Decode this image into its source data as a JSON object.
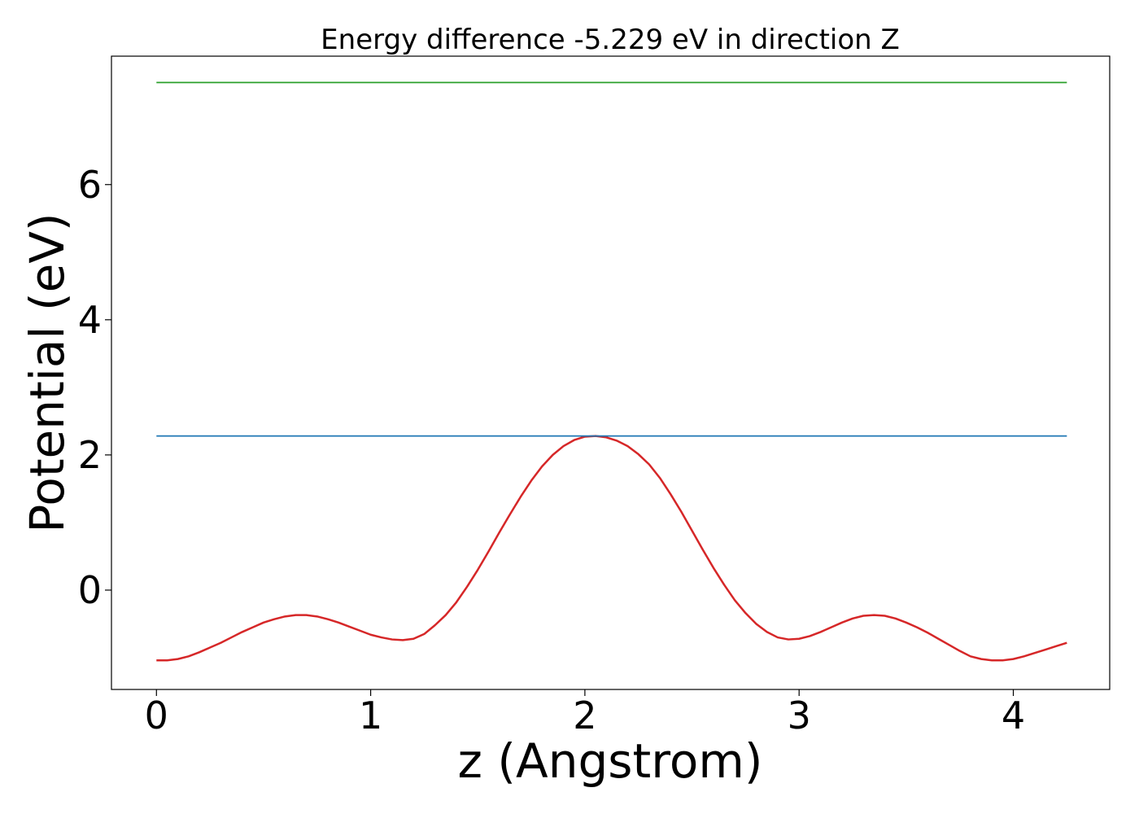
{
  "chart_data": {
    "type": "line",
    "title": "Energy difference -5.229 eV in direction Z",
    "xlabel": "z (Angstrom)",
    "ylabel": "Potential (eV)",
    "xlim": [
      -0.21,
      4.45
    ],
    "ylim": [
      -1.47,
      7.9
    ],
    "xticks": [
      0,
      1,
      2,
      3,
      4
    ],
    "yticks": [
      0,
      2,
      4,
      6
    ],
    "grid": false,
    "legend": "none",
    "series": [
      {
        "color": "#d62728",
        "x": [
          0.0,
          0.05,
          0.1,
          0.15,
          0.2,
          0.25,
          0.3,
          0.35,
          0.4,
          0.45,
          0.5,
          0.55,
          0.6,
          0.65,
          0.7,
          0.75,
          0.8,
          0.85,
          0.9,
          0.95,
          1.0,
          1.05,
          1.1,
          1.15,
          1.2,
          1.25,
          1.3,
          1.35,
          1.4,
          1.45,
          1.5,
          1.55,
          1.6,
          1.65,
          1.7,
          1.75,
          1.8,
          1.85,
          1.9,
          1.95,
          2.0,
          2.05,
          2.1,
          2.15,
          2.2,
          2.25,
          2.3,
          2.35,
          2.4,
          2.45,
          2.5,
          2.55,
          2.6,
          2.65,
          2.7,
          2.75,
          2.8,
          2.85,
          2.9,
          2.95,
          3.0,
          3.05,
          3.1,
          3.15,
          3.2,
          3.25,
          3.3,
          3.35,
          3.4,
          3.45,
          3.5,
          3.55,
          3.6,
          3.65,
          3.7,
          3.75,
          3.8,
          3.85,
          3.9,
          3.95,
          4.0,
          4.05,
          4.1,
          4.15,
          4.2,
          4.25
        ],
        "y": [
          -1.04,
          -1.04,
          -1.02,
          -0.98,
          -0.92,
          -0.85,
          -0.78,
          -0.7,
          -0.62,
          -0.55,
          -0.48,
          -0.43,
          -0.39,
          -0.37,
          -0.37,
          -0.39,
          -0.43,
          -0.48,
          -0.54,
          -0.6,
          -0.66,
          -0.7,
          -0.73,
          -0.74,
          -0.72,
          -0.65,
          -0.52,
          -0.37,
          -0.18,
          0.05,
          0.3,
          0.57,
          0.85,
          1.12,
          1.38,
          1.62,
          1.83,
          2.0,
          2.13,
          2.22,
          2.27,
          2.28,
          2.26,
          2.21,
          2.13,
          2.01,
          1.86,
          1.66,
          1.42,
          1.16,
          0.88,
          0.6,
          0.33,
          0.08,
          -0.15,
          -0.34,
          -0.5,
          -0.62,
          -0.7,
          -0.73,
          -0.72,
          -0.68,
          -0.62,
          -0.55,
          -0.48,
          -0.42,
          -0.38,
          -0.37,
          -0.38,
          -0.42,
          -0.48,
          -0.55,
          -0.63,
          -0.72,
          -0.81,
          -0.9,
          -0.98,
          -1.02,
          -1.04,
          -1.04,
          -1.02,
          -0.98,
          -0.93,
          -0.88,
          -0.83,
          -0.78
        ]
      },
      {
        "color": "#1f77b4",
        "x": [
          0.0,
          4.25
        ],
        "y": [
          2.28,
          2.28
        ]
      },
      {
        "color": "#2ca02c",
        "x": [
          0.0,
          4.25
        ],
        "y": [
          7.51,
          7.51
        ]
      }
    ]
  }
}
